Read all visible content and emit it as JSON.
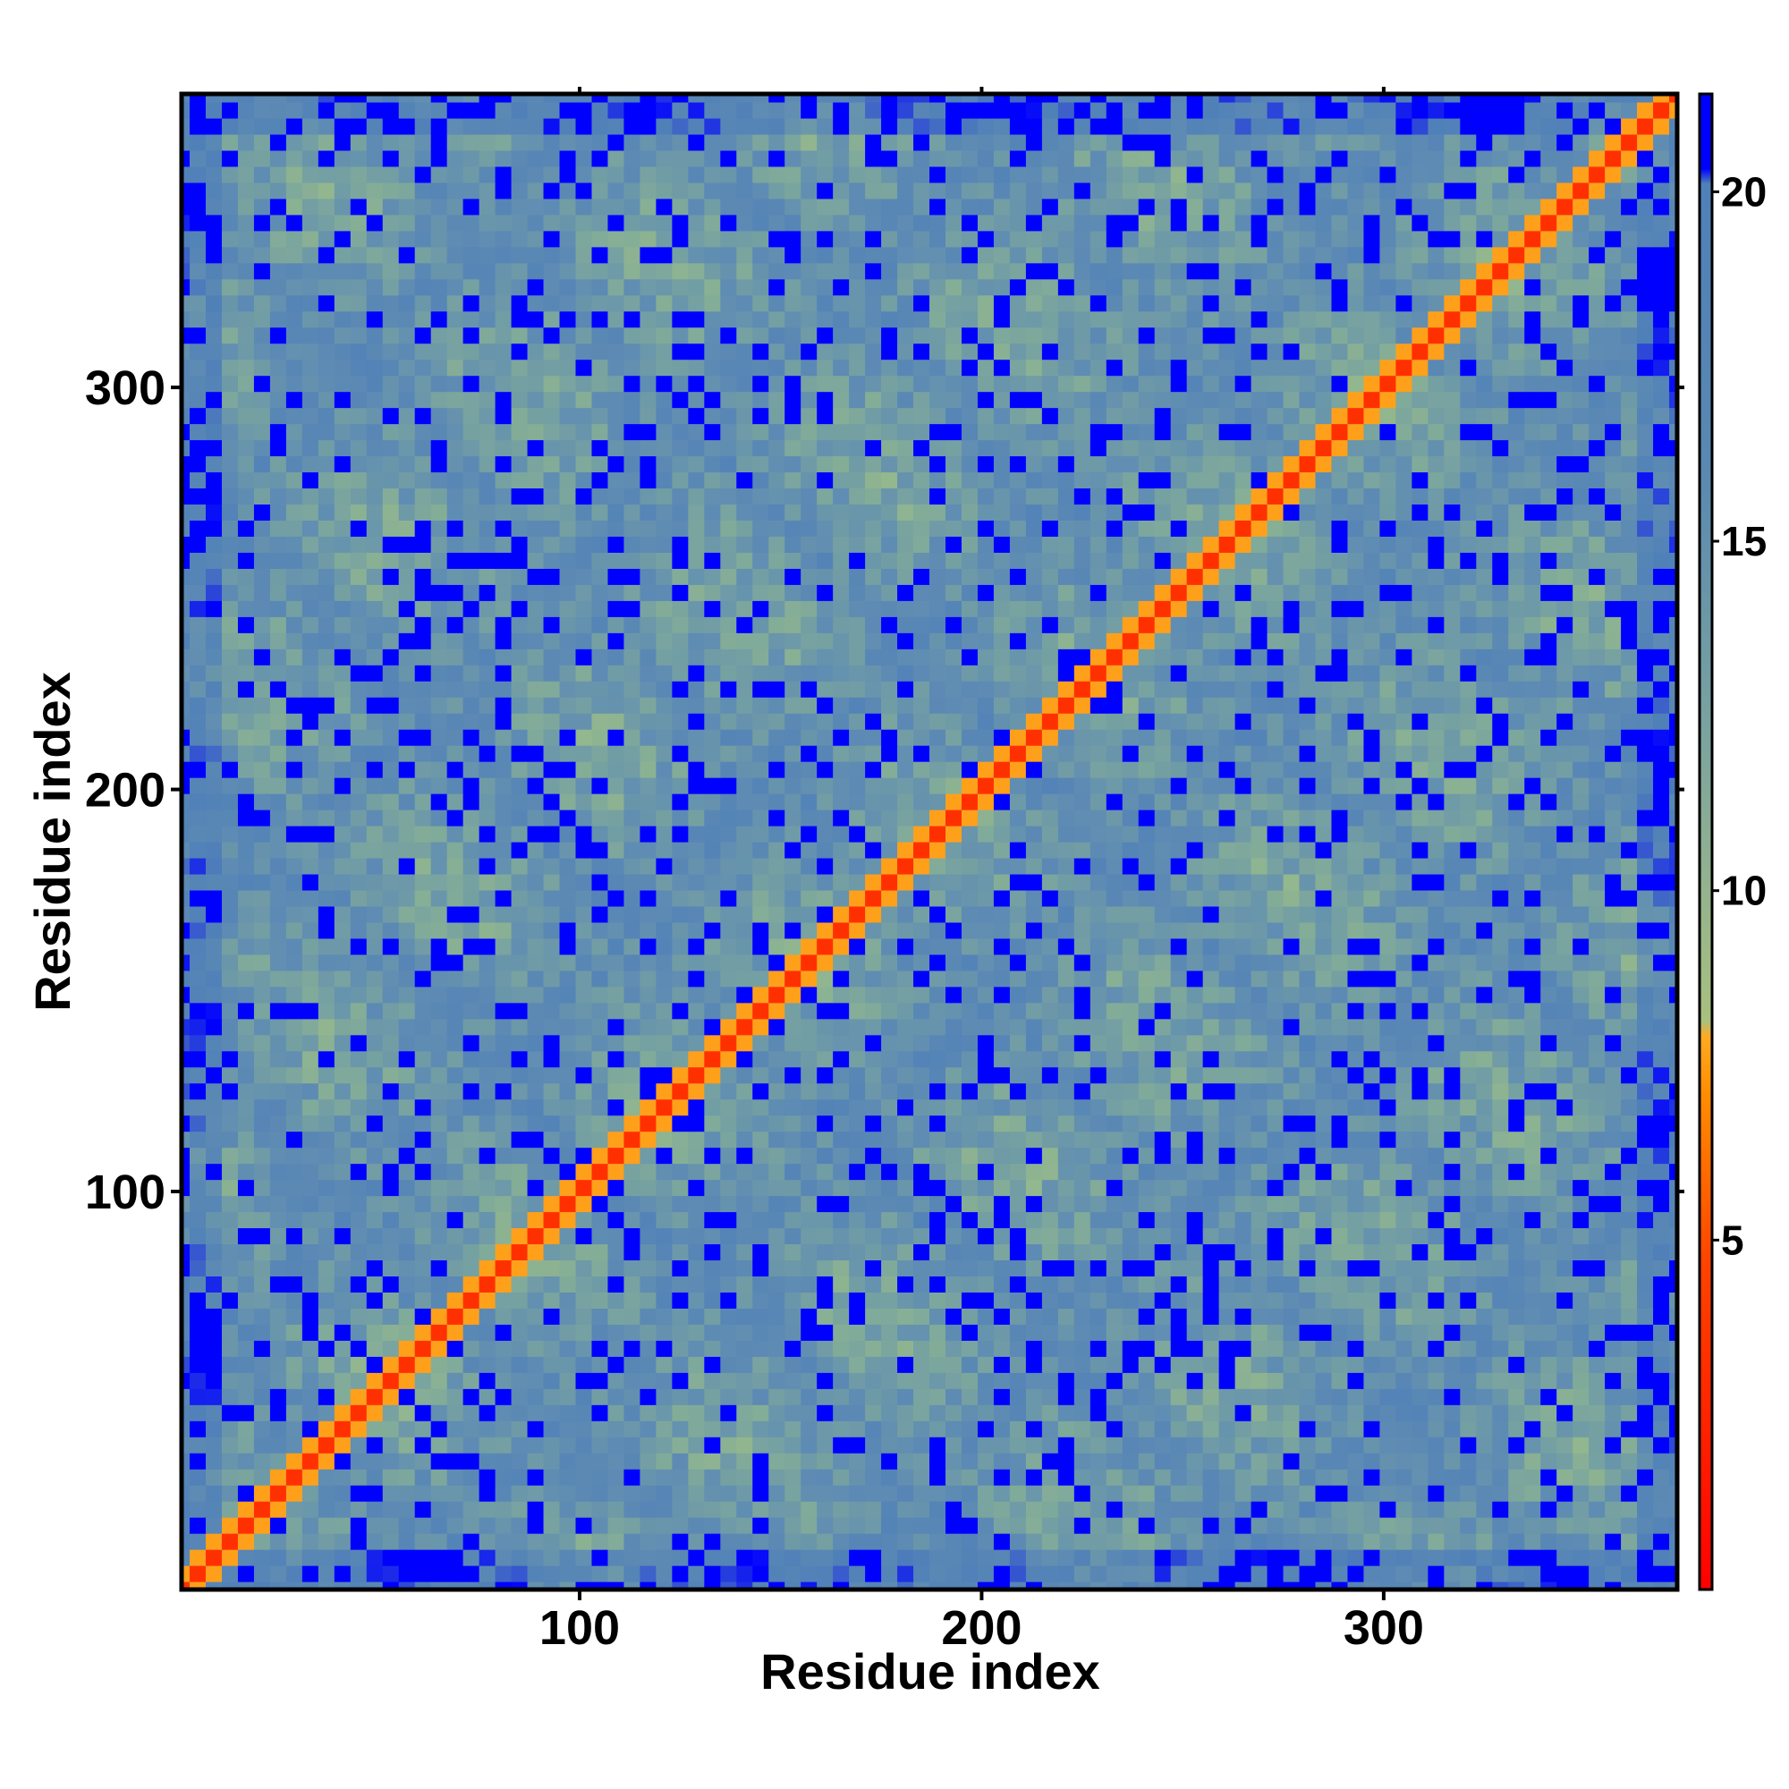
{
  "chart_data": {
    "type": "heatmap",
    "title": "",
    "xlabel": "Residue index",
    "ylabel": "Residue index",
    "xlim": [
      1,
      373
    ],
    "ylim": [
      1,
      373
    ],
    "xticks": [
      100,
      200,
      300
    ],
    "yticks": [
      100,
      200,
      300
    ],
    "colorbar": {
      "ticks": [
        5,
        10,
        15,
        20
      ],
      "range": [
        0,
        21.4
      ],
      "colors": [
        {
          "value": 0,
          "color": "#ff0000"
        },
        {
          "value": 4,
          "color": "#ff3300"
        },
        {
          "value": 6,
          "color": "#ff7700"
        },
        {
          "value": 8,
          "color": "#ffaa22"
        },
        {
          "value": 9,
          "color": "#9fbf86"
        },
        {
          "value": 12,
          "color": "#80aa9a"
        },
        {
          "value": 16,
          "color": "#5f8cb3"
        },
        {
          "value": 20,
          "color": "#5080b8"
        },
        {
          "value": 21,
          "color": "#0000ff"
        }
      ]
    },
    "description_values": {
      "diagonal_distance": 3.8,
      "background_distance": 21
    },
    "grid": false,
    "legend": "colorbar-right"
  }
}
